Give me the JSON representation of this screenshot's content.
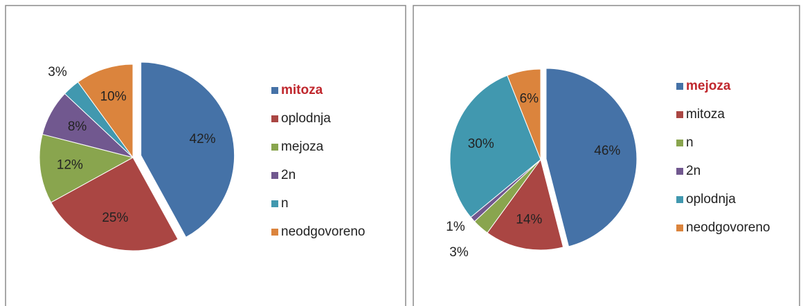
{
  "chart_data": [
    {
      "type": "pie",
      "categories": [
        "mitoza",
        "oplodnja",
        "mejoza",
        "2n",
        "n",
        "neodgovoreno"
      ],
      "values": [
        42,
        25,
        12,
        8,
        3,
        10
      ],
      "value_labels": [
        "42%",
        "25%",
        "12%",
        "8%",
        "3%",
        "10%"
      ],
      "colors": [
        "#4572a7",
        "#aa4643",
        "#89a54e",
        "#71588f",
        "#4198af",
        "#db843d"
      ],
      "exploded": 0,
      "legend": "right",
      "legend_highlight": 0,
      "legend_highlight_color": "#c0272d"
    },
    {
      "type": "pie",
      "categories": [
        "mejoza",
        "mitoza",
        "n",
        "2n",
        "oplodnja",
        "neodgovoreno"
      ],
      "values": [
        46,
        14,
        3,
        1,
        30,
        6
      ],
      "value_labels": [
        "46%",
        "14%",
        "3%",
        "1%",
        "30%",
        "6%"
      ],
      "colors": [
        "#4572a7",
        "#aa4643",
        "#89a54e",
        "#71588f",
        "#4198af",
        "#db843d"
      ],
      "exploded": 0,
      "legend": "right",
      "legend_highlight": 0,
      "legend_highlight_color": "#c0272d"
    }
  ]
}
